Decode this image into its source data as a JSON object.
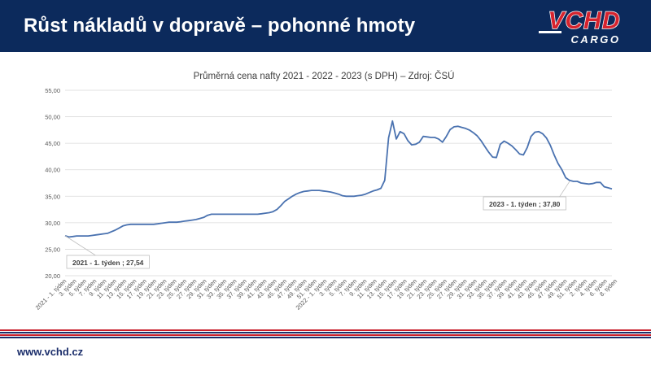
{
  "header": {
    "title": "Růst nákladů v dopravě – pohonné hmoty",
    "logo_top": "VCHD",
    "logo_bottom": "CARGO"
  },
  "colors": {
    "header_bg": "#0c2a5c",
    "line": "#4a72b0",
    "logo_red": "#d6232e",
    "stripe_red": "#c8202c",
    "stripe_blue": "#1b2e6b"
  },
  "footer": {
    "url": "www.vchd.cz"
  },
  "chart_data": {
    "type": "line",
    "title": "Průměrná cena nafty 2021 - 2022 - 2023 (s DPH) – Zdroj: ČSÚ",
    "xlabel": "",
    "ylabel": "",
    "ylim": [
      20,
      55
    ],
    "yticks": [
      "20,00",
      "25,00",
      "30,00",
      "35,00",
      "40,00",
      "45,00",
      "50,00",
      "55,00"
    ],
    "grid": true,
    "x_tick_labels": [
      "2021 - 1. týden",
      "3. týden",
      "5. týden",
      "7. týden",
      "9. týden",
      "11. týden",
      "13. týden",
      "15. týden",
      "17. týden",
      "19. týden",
      "21. týden",
      "23. týden",
      "25. týden",
      "27. týden",
      "29. týden",
      "31. týden",
      "33. týden",
      "35. týden",
      "37. týden",
      "39. týden",
      "41. týden",
      "43. týden",
      "45. týden",
      "47. týden",
      "49. týden",
      "51. týden",
      "2022 - 1. týden",
      "3. týden",
      "5. týden",
      "7. týden",
      "9. týden",
      "11. týden",
      "13. týden",
      "15. týden",
      "17. týden",
      "19. týden",
      "21. týden",
      "23. týden",
      "25. týden",
      "27. týden",
      "29. týden",
      "31. týden",
      "33. týden",
      "35. týden",
      "37. týden",
      "39. týden",
      "41. týden",
      "43. týden",
      "45. týden",
      "47. týden",
      "49. týden",
      "51. týden",
      "2. týden",
      "4. týden",
      "6. týden",
      "8. týden"
    ],
    "values": [
      27.54,
      27.3,
      27.4,
      27.5,
      27.5,
      27.5,
      27.5,
      27.6,
      27.7,
      27.8,
      27.9,
      28.0,
      28.3,
      28.6,
      29.0,
      29.4,
      29.6,
      29.7,
      29.7,
      29.7,
      29.7,
      29.7,
      29.7,
      29.7,
      29.8,
      29.9,
      30.0,
      30.1,
      30.1,
      30.1,
      30.2,
      30.3,
      30.4,
      30.5,
      30.6,
      30.8,
      31.0,
      31.4,
      31.6,
      31.6,
      31.6,
      31.6,
      31.6,
      31.6,
      31.6,
      31.6,
      31.6,
      31.6,
      31.6,
      31.6,
      31.6,
      31.7,
      31.8,
      31.9,
      32.1,
      32.5,
      33.2,
      34.0,
      34.5,
      35.0,
      35.4,
      35.7,
      35.9,
      36.0,
      36.1,
      36.1,
      36.1,
      36.0,
      35.9,
      35.8,
      35.6,
      35.4,
      35.1,
      35.0,
      35.0,
      35.0,
      35.1,
      35.2,
      35.4,
      35.7,
      36.0,
      36.2,
      36.5,
      38.0,
      46.0,
      49.2,
      45.8,
      47.2,
      46.8,
      45.5,
      44.7,
      44.8,
      45.2,
      46.3,
      46.2,
      46.1,
      46.1,
      45.8,
      45.2,
      46.3,
      47.6,
      48.1,
      48.2,
      48.0,
      47.8,
      47.5,
      47.0,
      46.4,
      45.5,
      44.4,
      43.3,
      42.4,
      42.3,
      44.8,
      45.4,
      45.0,
      44.5,
      43.8,
      43.0,
      42.8,
      44.2,
      46.3,
      47.1,
      47.2,
      46.8,
      46.0,
      44.6,
      42.8,
      41.2,
      40.0,
      38.5,
      38.0,
      37.8,
      37.8,
      37.5,
      37.4,
      37.3,
      37.4,
      37.6,
      37.6,
      36.8,
      36.6,
      36.4
    ],
    "annotations": [
      {
        "text": "2021 - 1. týden ; 27,54",
        "index": 0,
        "value": 27.54
      },
      {
        "text": "2023 - 1. týden ; 37,80",
        "index": 131,
        "value": 37.8
      }
    ]
  }
}
